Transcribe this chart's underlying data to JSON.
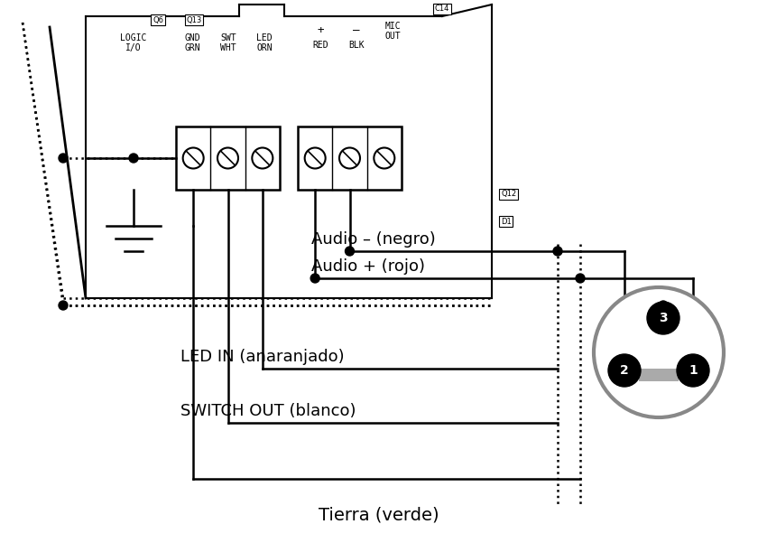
{
  "bg_color": "#ffffff",
  "fig_width": 8.4,
  "fig_height": 6.01,
  "labels": {
    "logic_io": "LOGIC\nI/O",
    "gnd_grn": "GND\nGRN",
    "swt_wht": "SWT\nWHT",
    "led_orn": "LED\nORN",
    "plus": "+",
    "minus": "–",
    "mic_out": "MIC\nOUT",
    "red": "RED",
    "blk": "BLK",
    "audio_neg": "Audio – (negro)",
    "audio_pos": "Audio + (rojo)",
    "led_in": "LED IN (anaranjado)",
    "switch_out": "SWITCH OUT (blanco)",
    "tierra": "Tierra (verde)",
    "q6": "Q6",
    "q13": "Q13",
    "c14": "C14",
    "q12": "Q12",
    "d1": "D1"
  }
}
